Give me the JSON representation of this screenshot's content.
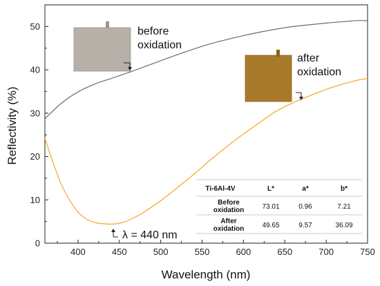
{
  "chart_data": {
    "type": "line",
    "xlabel": "Wavelength (nm)",
    "ylabel": "Reflectivity (%)",
    "xlim": [
      360,
      750
    ],
    "ylim": [
      0,
      55
    ],
    "x_ticks": [
      400,
      450,
      500,
      550,
      600,
      650,
      700,
      750
    ],
    "y_ticks": [
      0,
      10,
      20,
      30,
      40,
      50
    ],
    "grid": false,
    "series": [
      {
        "color": "#6b6b6b",
        "x": [
          360,
          380,
          400,
          420,
          440,
          460,
          480,
          500,
          520,
          540,
          560,
          580,
          600,
          620,
          640,
          660,
          680,
          700,
          720,
          740,
          750
        ],
        "y": [
          28.7,
          32.3,
          34.9,
          36.7,
          38.0,
          39.3,
          40.7,
          42.1,
          43.5,
          44.8,
          46.0,
          47.0,
          47.9,
          48.7,
          49.4,
          50.0,
          50.4,
          50.8,
          51.1,
          51.4,
          51.3
        ]
      },
      {
        "color": "#f5a623",
        "x": [
          360,
          370,
          380,
          390,
          400,
          410,
          420,
          430,
          440,
          450,
          460,
          470,
          480,
          500,
          520,
          540,
          560,
          580,
          600,
          620,
          640,
          660,
          680,
          700,
          720,
          740,
          750
        ],
        "y": [
          24.2,
          18.5,
          13.5,
          9.9,
          7.2,
          5.6,
          4.8,
          4.5,
          4.4,
          4.6,
          5.2,
          6.1,
          7.2,
          9.8,
          12.8,
          15.9,
          19.2,
          22.3,
          25.2,
          27.9,
          30.5,
          32.4,
          34.0,
          35.5,
          36.7,
          37.7,
          38.0
        ]
      }
    ],
    "annotations": {
      "before": [
        "before",
        "oxidation"
      ],
      "after": [
        "after",
        "oxidation"
      ],
      "minimum": "λ = 440 nm"
    },
    "table": {
      "header": [
        "Ti-6Al-4V",
        "L*",
        "a*",
        "b*"
      ],
      "rows": [
        {
          "label": [
            "Before",
            "oxidation"
          ],
          "values": [
            "73.01",
            "0.96",
            "7.21"
          ]
        },
        {
          "label": [
            "After",
            "oxidation"
          ],
          "values": [
            "49.65",
            "9.57",
            "36.09"
          ]
        }
      ]
    },
    "sample_colors": {
      "before": "#b6b0a8",
      "after": "#a97a2b"
    }
  }
}
